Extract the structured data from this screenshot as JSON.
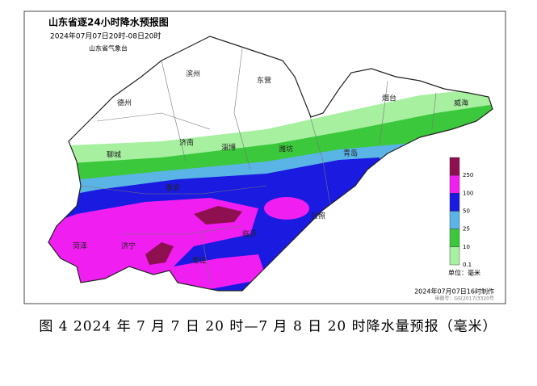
{
  "header": {
    "title": "山东省逐24小时降水预报图",
    "period": "2024年07月07日20时-08日20时",
    "issuer": "山东省气象台"
  },
  "cities": [
    "德州",
    "滨州",
    "东营",
    "烟台",
    "威海",
    "聊城",
    "济南",
    "淄博",
    "潍坊",
    "青岛",
    "泰安",
    "菏泽",
    "济宁",
    "临沂",
    "日照",
    "枣庄"
  ],
  "legend": {
    "items": [
      {
        "value": 250,
        "color": "#8e1050"
      },
      {
        "value": 100,
        "color": "#f01ef0"
      },
      {
        "value": 50,
        "color": "#1a1ae0"
      },
      {
        "value": 25,
        "color": "#5ab4e6"
      },
      {
        "value": 10,
        "color": "#3cc83c"
      },
      {
        "value": 0.1,
        "color": "#a6f0a0"
      }
    ],
    "unit": "单位：毫米"
  },
  "footer": {
    "made": "2024年07月07日16时制作",
    "approval": "审图号：GS(2017)3320号"
  },
  "caption": "图 4 2024 年 7 月 7 日 20 时—7 月 8 日 20 时降水量预报（毫米）"
}
